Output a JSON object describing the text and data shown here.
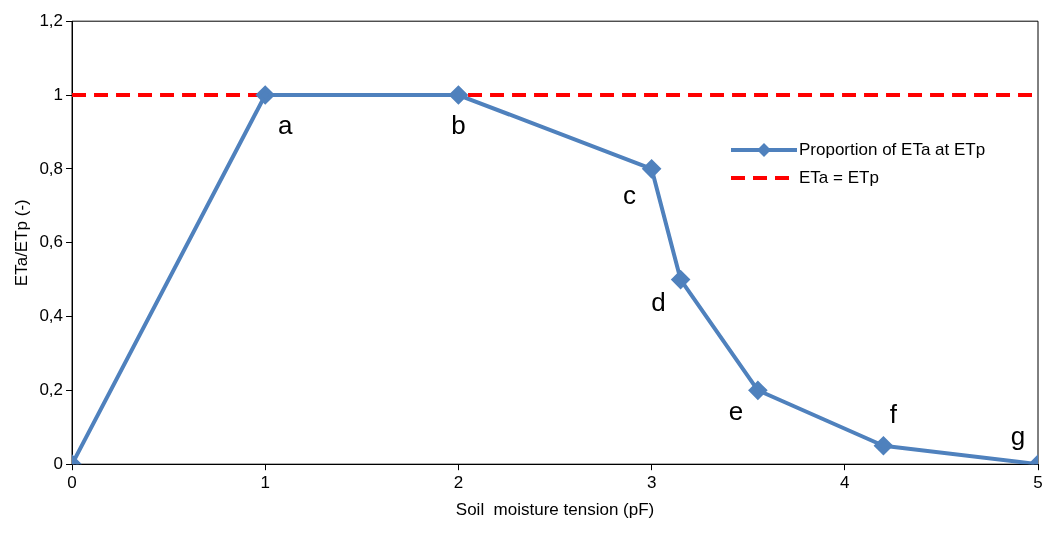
{
  "chart_data": {
    "type": "line",
    "xlabel": "Soil  moisture tension (pF)",
    "ylabel": "ETa/ETp (-)",
    "series": [
      {
        "name": "Proportion of ETa at ETp",
        "color": "#4f81bd",
        "x": [
          0,
          1,
          2,
          3,
          3.15,
          3.55,
          4.2,
          5
        ],
        "values": [
          0,
          1,
          1,
          0.8,
          0.5,
          0.2,
          0.05,
          0
        ]
      }
    ],
    "xlim": [
      0,
      5
    ],
    "xticks": [
      0,
      1,
      2,
      3,
      4,
      5
    ],
    "ylim": [
      0,
      1.2
    ],
    "yticks": [
      0,
      {
        "value": 0.2,
        "label": "0,2"
      },
      {
        "value": 0.4,
        "label": "0,4"
      },
      {
        "value": 0.6,
        "label": "0,6"
      },
      {
        "value": 0.8,
        "label": "0,8"
      },
      1,
      {
        "value": 1.2,
        "label": "1,2"
      }
    ],
    "ref_lines": [
      {
        "axis": "y",
        "value": 1,
        "label": "ETa = ETp",
        "color": "#ff0000",
        "line_style": "dashed"
      }
    ],
    "annotations": [
      {
        "text": "a",
        "x": 1,
        "y": 1
      },
      {
        "text": "b",
        "x": 2,
        "y": 1
      },
      {
        "text": "c",
        "x": 3,
        "y": 0.8
      },
      {
        "text": "d",
        "x": 3.15,
        "y": 0.5
      },
      {
        "text": "e",
        "x": 3.55,
        "y": 0.2
      },
      {
        "text": "f",
        "x": 4.2,
        "y": 0.05
      },
      {
        "text": "g",
        "x": 5,
        "y": 0
      }
    ],
    "marker": "diamond",
    "line_style": "solid",
    "grid": false,
    "legend": "right"
  }
}
